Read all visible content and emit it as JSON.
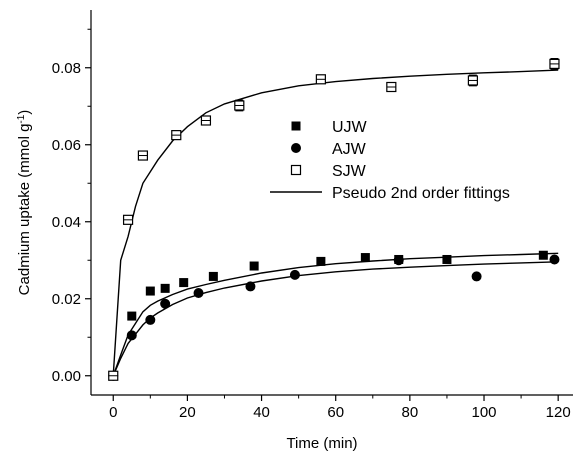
{
  "chart_data": {
    "type": "scatter",
    "title": "",
    "xlabel": "Time (min)",
    "ylabel": "Cadmium uptake (mmol g",
    "ylabel_sup": "-1",
    "ylabel_close": ")",
    "xlim": [
      -6,
      124
    ],
    "ylim": [
      -0.005,
      0.095
    ],
    "xticks": [
      0,
      20,
      40,
      60,
      80,
      100,
      120
    ],
    "yticks": [
      0.0,
      0.02,
      0.04,
      0.06,
      0.08
    ],
    "xtick_labels": [
      "0",
      "20",
      "40",
      "60",
      "80",
      "100",
      "120"
    ],
    "ytick_labels": [
      "0.00",
      "0.02",
      "0.04",
      "0.06",
      "0.08"
    ],
    "legend_position": "center-right",
    "grid": false,
    "series": [
      {
        "name": "UJW",
        "marker": "filled-square",
        "x": [
          0,
          5,
          10,
          14,
          19,
          27,
          38,
          56,
          68,
          77,
          90,
          116
        ],
        "y": [
          0.0,
          0.0155,
          0.022,
          0.0227,
          0.0242,
          0.0258,
          0.0285,
          0.0297,
          0.0307,
          0.0302,
          0.0302,
          0.0313
        ]
      },
      {
        "name": "AJW",
        "marker": "filled-circle",
        "x": [
          0,
          5,
          10,
          14,
          23,
          37,
          49,
          77,
          98,
          119
        ],
        "y": [
          0.0,
          0.0105,
          0.0145,
          0.0187,
          0.0215,
          0.0232,
          0.0262,
          0.03,
          0.0258,
          0.0302
        ]
      },
      {
        "name": "SJW",
        "marker": "open-square",
        "error_bars": true,
        "x": [
          0,
          4,
          8,
          17,
          25,
          34,
          56,
          75,
          97,
          119
        ],
        "y": [
          0.0,
          0.0405,
          0.0572,
          0.0625,
          0.0663,
          0.0702,
          0.077,
          0.075,
          0.0767,
          0.081
        ],
        "err": [
          0.0003,
          0.0005,
          0.0007,
          0.0008,
          0.0008,
          0.0014,
          0.0008,
          0.0006,
          0.0014,
          0.0014
        ]
      },
      {
        "name": "Pseudo 2nd order fittings",
        "marker": "line",
        "fits": [
          {
            "x": [
              0,
              2,
              4,
              6,
              8,
              10,
              12,
              16,
              20,
              25,
              30,
              40,
              50,
              60,
              70,
              80,
              90,
              100,
              110,
              120
            ],
            "y": [
              0.0,
              0.0054,
              0.0106,
              0.0136,
              0.0166,
              0.0183,
              0.0194,
              0.0211,
              0.0225,
              0.0237,
              0.0248,
              0.0267,
              0.0281,
              0.0291,
              0.0298,
              0.0304,
              0.0308,
              0.0312,
              0.0315,
              0.0318
            ]
          },
          {
            "x": [
              0,
              2,
              4,
              6,
              8,
              10,
              12,
              16,
              20,
              25,
              30,
              40,
              50,
              60,
              70,
              80,
              90,
              100,
              110,
              120
            ],
            "y": [
              0.0,
              0.0045,
              0.0084,
              0.0108,
              0.0132,
              0.015,
              0.0163,
              0.0185,
              0.0202,
              0.0216,
              0.0228,
              0.0246,
              0.026,
              0.027,
              0.0277,
              0.0282,
              0.0286,
              0.029,
              0.0293,
              0.0296
            ]
          },
          {
            "x": [
              0,
              2,
              4,
              6,
              8,
              10,
              12,
              16,
              20,
              25,
              30,
              40,
              50,
              60,
              70,
              80,
              90,
              100,
              110,
              120
            ],
            "y": [
              0.0,
              0.03,
              0.0362,
              0.044,
              0.05,
              0.053,
              0.056,
              0.061,
              0.0647,
              0.0683,
              0.0706,
              0.0735,
              0.0753,
              0.0764,
              0.0772,
              0.0778,
              0.0783,
              0.0787,
              0.079,
              0.0794
            ]
          }
        ]
      }
    ]
  }
}
